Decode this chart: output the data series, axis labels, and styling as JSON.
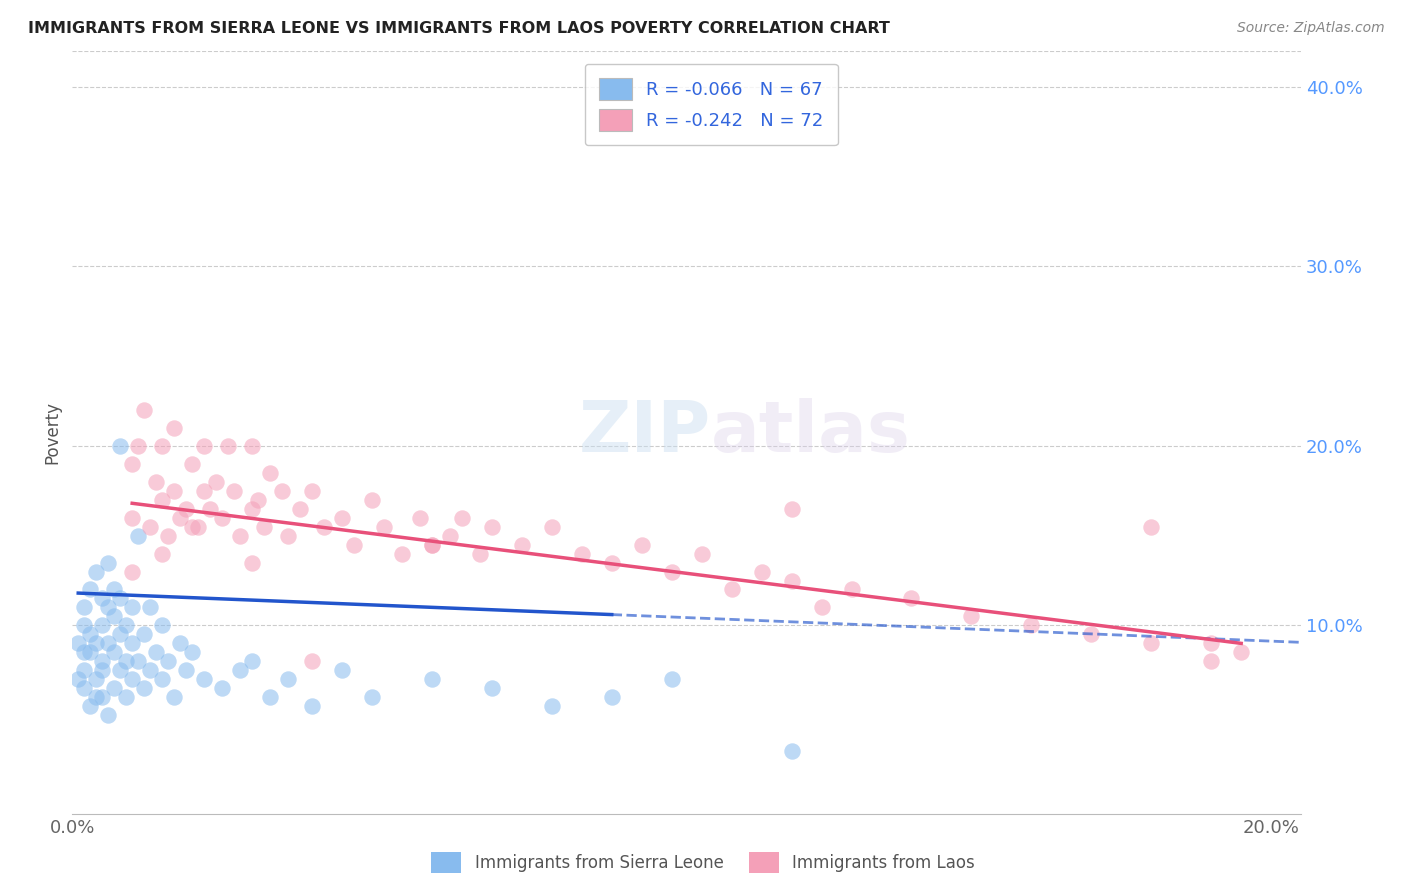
{
  "title": "IMMIGRANTS FROM SIERRA LEONE VS IMMIGRANTS FROM LAOS POVERTY CORRELATION CHART",
  "source": "Source: ZipAtlas.com",
  "ylabel": "Poverty",
  "xlim": [
    0.0,
    0.205
  ],
  "ylim": [
    -0.005,
    0.42
  ],
  "yticks": [
    0.1,
    0.2,
    0.3,
    0.4
  ],
  "ytick_labels": [
    "10.0%",
    "20.0%",
    "30.0%",
    "40.0%"
  ],
  "xticks": [
    0.0,
    0.05,
    0.1,
    0.15,
    0.2
  ],
  "xtick_labels": [
    "0.0%",
    "",
    "",
    "",
    "20.0%"
  ],
  "legend_R1": "R = -0.066",
  "legend_N1": "N = 67",
  "legend_R2": "R = -0.242",
  "legend_N2": "N = 72",
  "color_blue": "#88bbee",
  "color_pink": "#f4a0b8",
  "trendline_blue": "#2255cc",
  "trendline_pink": "#e8507a",
  "sierra_leone_x": [
    0.001,
    0.001,
    0.002,
    0.002,
    0.002,
    0.002,
    0.002,
    0.003,
    0.003,
    0.003,
    0.003,
    0.004,
    0.004,
    0.004,
    0.004,
    0.005,
    0.005,
    0.005,
    0.005,
    0.005,
    0.006,
    0.006,
    0.006,
    0.006,
    0.007,
    0.007,
    0.007,
    0.007,
    0.008,
    0.008,
    0.008,
    0.008,
    0.009,
    0.009,
    0.009,
    0.01,
    0.01,
    0.01,
    0.011,
    0.011,
    0.012,
    0.012,
    0.013,
    0.013,
    0.014,
    0.015,
    0.015,
    0.016,
    0.017,
    0.018,
    0.019,
    0.02,
    0.022,
    0.025,
    0.028,
    0.03,
    0.033,
    0.036,
    0.04,
    0.045,
    0.05,
    0.06,
    0.07,
    0.08,
    0.09,
    0.1,
    0.12
  ],
  "sierra_leone_y": [
    0.09,
    0.07,
    0.085,
    0.1,
    0.065,
    0.11,
    0.075,
    0.085,
    0.095,
    0.055,
    0.12,
    0.07,
    0.09,
    0.06,
    0.13,
    0.08,
    0.1,
    0.06,
    0.075,
    0.115,
    0.05,
    0.09,
    0.11,
    0.135,
    0.065,
    0.085,
    0.105,
    0.12,
    0.075,
    0.095,
    0.115,
    0.2,
    0.06,
    0.08,
    0.1,
    0.07,
    0.09,
    0.11,
    0.08,
    0.15,
    0.065,
    0.095,
    0.075,
    0.11,
    0.085,
    0.07,
    0.1,
    0.08,
    0.06,
    0.09,
    0.075,
    0.085,
    0.07,
    0.065,
    0.075,
    0.08,
    0.06,
    0.07,
    0.055,
    0.075,
    0.06,
    0.07,
    0.065,
    0.055,
    0.06,
    0.07,
    0.03
  ],
  "laos_x": [
    0.01,
    0.01,
    0.011,
    0.012,
    0.013,
    0.014,
    0.015,
    0.015,
    0.016,
    0.017,
    0.017,
    0.018,
    0.019,
    0.02,
    0.021,
    0.022,
    0.022,
    0.023,
    0.024,
    0.025,
    0.026,
    0.027,
    0.028,
    0.03,
    0.03,
    0.031,
    0.032,
    0.033,
    0.035,
    0.036,
    0.038,
    0.04,
    0.042,
    0.045,
    0.047,
    0.05,
    0.052,
    0.055,
    0.058,
    0.06,
    0.063,
    0.065,
    0.068,
    0.07,
    0.075,
    0.08,
    0.085,
    0.09,
    0.095,
    0.1,
    0.105,
    0.11,
    0.115,
    0.12,
    0.125,
    0.13,
    0.14,
    0.15,
    0.16,
    0.17,
    0.18,
    0.19,
    0.195,
    0.01,
    0.015,
    0.02,
    0.03,
    0.04,
    0.06,
    0.12,
    0.18,
    0.19
  ],
  "laos_y": [
    0.16,
    0.19,
    0.2,
    0.22,
    0.155,
    0.18,
    0.17,
    0.2,
    0.15,
    0.175,
    0.21,
    0.16,
    0.165,
    0.19,
    0.155,
    0.175,
    0.2,
    0.165,
    0.18,
    0.16,
    0.2,
    0.175,
    0.15,
    0.165,
    0.2,
    0.17,
    0.155,
    0.185,
    0.175,
    0.15,
    0.165,
    0.175,
    0.155,
    0.16,
    0.145,
    0.17,
    0.155,
    0.14,
    0.16,
    0.145,
    0.15,
    0.16,
    0.14,
    0.155,
    0.145,
    0.155,
    0.14,
    0.135,
    0.145,
    0.13,
    0.14,
    0.12,
    0.13,
    0.125,
    0.11,
    0.12,
    0.115,
    0.105,
    0.1,
    0.095,
    0.09,
    0.08,
    0.085,
    0.13,
    0.14,
    0.155,
    0.135,
    0.08,
    0.145,
    0.165,
    0.155,
    0.09
  ],
  "sl_trendline_x": [
    0.001,
    0.12
  ],
  "sl_trendline_y_start": 0.118,
  "sl_trendline_y_end": 0.102,
  "sl_trendline_solid_end_x": 0.09,
  "laos_trendline_x": [
    0.01,
    0.195
  ],
  "laos_trendline_y_start": 0.168,
  "laos_trendline_y_end": 0.09
}
